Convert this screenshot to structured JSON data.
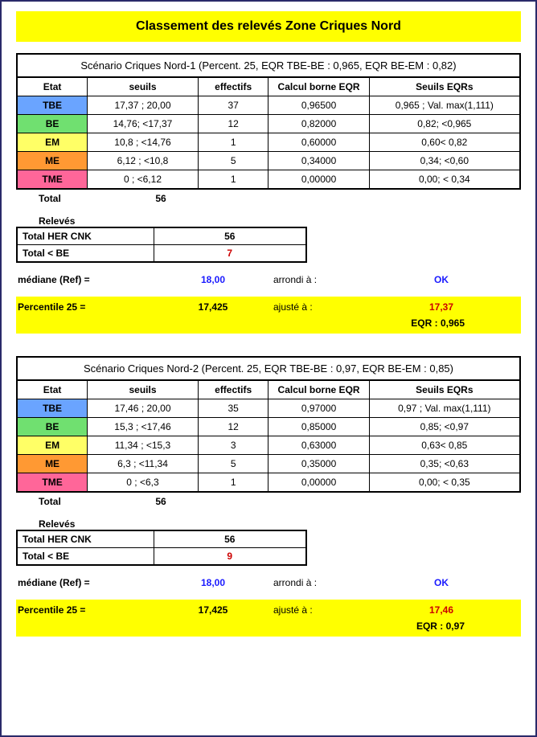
{
  "title": "Classement des relevés Zone Criques Nord",
  "headers": {
    "etat": "Etat",
    "seuils": "seuils",
    "effectifs": "effectifs",
    "calc": "Calcul borne EQR",
    "seqrs": "Seuils EQRs",
    "total_label": "Total",
    "releves_label": "Relevés",
    "tot_her": "Total HER CNK",
    "tot_be": "Total < BE",
    "mediane_label": "médiane (Ref)  =",
    "arrondi_label": "arrondi à :",
    "percentile_label": "Percentile 25 =",
    "ajuste_label": "ajusté à :",
    "ok": "OK"
  },
  "colors": {
    "TBE": "#6aa4ff",
    "BE": "#70e070",
    "EM": "#ffff66",
    "ME": "#ff9933",
    "TME": "#ff6699"
  },
  "scenarios": [
    {
      "caption": "Scénario Criques Nord-1  (Percent. 25, EQR TBE-BE : 0,965, EQR BE-EM : 0,82)",
      "rows": [
        {
          "etat": "TBE",
          "seuils": "17,37 ; 20,00",
          "eff": "37",
          "eqr": "0,96500",
          "seqrs": "0,965 ; Val. max(1,111)"
        },
        {
          "etat": "BE",
          "seuils": "14,76;  <17,37",
          "eff": "12",
          "eqr": "0,82000",
          "seqrs": "0,82; <0,965"
        },
        {
          "etat": "EM",
          "seuils": "10,8 ; <14,76",
          "eff": "1",
          "eqr": "0,60000",
          "seqrs": "0,60< 0,82"
        },
        {
          "etat": "ME",
          "seuils": "6,12 ; <10,8",
          "eff": "5",
          "eqr": "0,34000",
          "seqrs": "0,34; <0,60"
        },
        {
          "etat": "TME",
          "seuils": "0 ; <6,12",
          "eff": "1",
          "eqr": "0,00000",
          "seqrs": "0,00; < 0,34"
        }
      ],
      "total": "56",
      "tot_her": "56",
      "tot_be": "7",
      "mediane": "18,00",
      "percentile": "17,425",
      "ajuste": "17,37",
      "eqr_line": "EQR : 0,965"
    },
    {
      "caption": "Scénario Criques Nord-2  (Percent. 25, EQR TBE-BE : 0,97, EQR BE-EM : 0,85)",
      "rows": [
        {
          "etat": "TBE",
          "seuils": "17,46 ; 20,00",
          "eff": "35",
          "eqr": "0,97000",
          "seqrs": "0,97 ; Val. max(1,111)"
        },
        {
          "etat": "BE",
          "seuils": "15,3 ;  <17,46",
          "eff": "12",
          "eqr": "0,85000",
          "seqrs": "0,85; <0,97"
        },
        {
          "etat": "EM",
          "seuils": "11,34 ; <15,3",
          "eff": "3",
          "eqr": "0,63000",
          "seqrs": "0,63< 0,85"
        },
        {
          "etat": "ME",
          "seuils": "6,3 ; <11,34",
          "eff": "5",
          "eqr": "0,35000",
          "seqrs": "0,35; <0,63"
        },
        {
          "etat": "TME",
          "seuils": "0 ; <6,3",
          "eff": "1",
          "eqr": "0,00000",
          "seqrs": "0,00; < 0,35"
        }
      ],
      "total": "56",
      "tot_her": "56",
      "tot_be": "9",
      "mediane": "18,00",
      "percentile": "17,425",
      "ajuste": "17,46",
      "eqr_line": "EQR : 0,97"
    }
  ]
}
